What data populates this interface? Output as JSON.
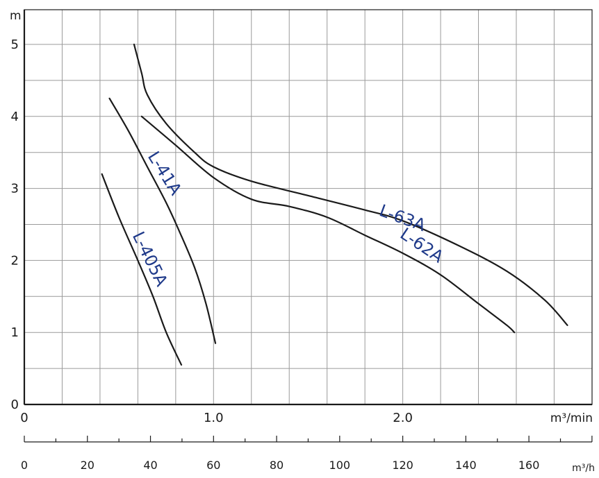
{
  "chart_data": {
    "type": "line",
    "title": "",
    "xlabel": "m³/min",
    "ylabel": "m",
    "xlim": [
      0,
      3.0
    ],
    "ylim": [
      0,
      5.5
    ],
    "grid": true,
    "legend": "inline labels on curves",
    "y_ticks": [
      "0",
      "1",
      "2",
      "3",
      "4",
      "5"
    ],
    "x_ticks": [
      {
        "value": 0,
        "label": "0"
      },
      {
        "value": 1.0,
        "label": "1.0"
      },
      {
        "value": 2.0,
        "label": "2.0"
      }
    ],
    "secondary_x": {
      "unit": "m³/h",
      "ticks": [
        "0",
        "20",
        "40",
        "60",
        "80",
        "100",
        "120",
        "140",
        "160"
      ]
    },
    "series_color": "#1a1a1a",
    "label_color": "#1f3a8a",
    "series": [
      {
        "name": "L-405A",
        "x": [
          0.41,
          0.5,
          0.6,
          0.68,
          0.75,
          0.83
        ],
        "y": [
          3.2,
          2.6,
          2.0,
          1.5,
          1.0,
          0.55
        ]
      },
      {
        "name": "L-41A",
        "x": [
          0.45,
          0.55,
          0.65,
          0.75,
          0.82,
          0.9,
          0.96,
          1.01
        ],
        "y": [
          4.25,
          3.8,
          3.3,
          2.8,
          2.4,
          1.9,
          1.4,
          0.85
        ]
      },
      {
        "name": "L-63A",
        "x": [
          0.58,
          0.62,
          0.65,
          0.75,
          0.9,
          1.0,
          1.2,
          1.5,
          1.8,
          2.0,
          2.3,
          2.55,
          2.75,
          2.87
        ],
        "y": [
          5.0,
          4.6,
          4.3,
          3.9,
          3.5,
          3.3,
          3.1,
          2.9,
          2.7,
          2.55,
          2.2,
          1.85,
          1.45,
          1.1
        ]
      },
      {
        "name": "L-62A",
        "x": [
          0.62,
          0.8,
          1.0,
          1.2,
          1.4,
          1.6,
          1.8,
          2.0,
          2.2,
          2.4,
          2.55,
          2.59
        ],
        "y": [
          4.0,
          3.6,
          3.15,
          2.85,
          2.75,
          2.6,
          2.35,
          2.1,
          1.8,
          1.4,
          1.1,
          1.0
        ]
      }
    ],
    "labels": [
      {
        "text": "L-405A",
        "series": "L-405A"
      },
      {
        "text": "L-41A",
        "series": "L-41A"
      },
      {
        "text": "L-63A",
        "series": "L-63A"
      },
      {
        "text": "L-62A",
        "series": "L-62A"
      }
    ]
  }
}
